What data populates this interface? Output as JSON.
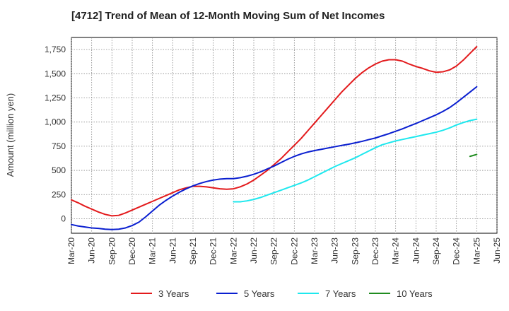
{
  "chart_data": {
    "type": "line",
    "title": "[4712]  Trend of Mean of 12-Month Moving Sum of Net Incomes",
    "xlabel": "",
    "ylabel": "Amount (million yen)",
    "ylim": [
      -150,
      1875
    ],
    "yticks": [
      0,
      250,
      500,
      750,
      1000,
      1250,
      1500,
      1750
    ],
    "ytick_labels": [
      "0",
      "250",
      "500",
      "750",
      "1,000",
      "1,250",
      "1,500",
      "1,750"
    ],
    "xticks": [
      "Mar-20",
      "Jun-20",
      "Sep-20",
      "Dec-20",
      "Mar-21",
      "Jun-21",
      "Sep-21",
      "Dec-21",
      "Mar-22",
      "Jun-22",
      "Sep-22",
      "Dec-22",
      "Mar-23",
      "Jun-23",
      "Sep-23",
      "Dec-23",
      "Mar-24",
      "Jun-24",
      "Sep-24",
      "Dec-24",
      "Mar-25",
      "Jun-25"
    ],
    "grid": true,
    "legend_position": "bottom",
    "series": [
      {
        "name": "3 Years",
        "color": "#e31a1c",
        "x": [
          "Mar-20",
          "Apr-20",
          "May-20",
          "Jun-20",
          "Jul-20",
          "Aug-20",
          "Sep-20",
          "Oct-20",
          "Nov-20",
          "Dec-20",
          "Jan-21",
          "Feb-21",
          "Mar-21",
          "Apr-21",
          "May-21",
          "Jun-21",
          "Jul-21",
          "Aug-21",
          "Sep-21",
          "Oct-21",
          "Nov-21",
          "Dec-21",
          "Jan-22",
          "Feb-22",
          "Mar-22",
          "Apr-22",
          "May-22",
          "Jun-22",
          "Jul-22",
          "Aug-22",
          "Sep-22",
          "Oct-22",
          "Nov-22",
          "Dec-22",
          "Jan-23",
          "Feb-23",
          "Mar-23",
          "Apr-23",
          "May-23",
          "Jun-23",
          "Jul-23",
          "Aug-23",
          "Sep-23",
          "Oct-23",
          "Nov-23",
          "Dec-23",
          "Jan-24",
          "Feb-24",
          "Mar-24",
          "Apr-24",
          "May-24",
          "Jun-24",
          "Jul-24",
          "Aug-24",
          "Sep-24",
          "Oct-24",
          "Nov-24",
          "Dec-24",
          "Jan-25",
          "Feb-25",
          "Mar-25"
        ],
        "values": [
          195,
          165,
          130,
          100,
          70,
          45,
          30,
          35,
          60,
          90,
          120,
          150,
          180,
          210,
          240,
          270,
          300,
          320,
          335,
          335,
          330,
          320,
          310,
          305,
          310,
          330,
          360,
          400,
          450,
          500,
          560,
          620,
          690,
          760,
          830,
          910,
          990,
          1070,
          1150,
          1230,
          1310,
          1380,
          1450,
          1510,
          1560,
          1600,
          1630,
          1645,
          1645,
          1630,
          1600,
          1575,
          1555,
          1530,
          1515,
          1520,
          1540,
          1580,
          1640,
          1710,
          1780
        ]
      },
      {
        "name": "5 Years",
        "color": "#0a1fd0",
        "x": [
          "Mar-20",
          "Apr-20",
          "May-20",
          "Jun-20",
          "Jul-20",
          "Aug-20",
          "Sep-20",
          "Oct-20",
          "Nov-20",
          "Dec-20",
          "Jan-21",
          "Feb-21",
          "Mar-21",
          "Apr-21",
          "May-21",
          "Jun-21",
          "Jul-21",
          "Aug-21",
          "Sep-21",
          "Oct-21",
          "Nov-21",
          "Dec-21",
          "Jan-22",
          "Feb-22",
          "Mar-22",
          "Apr-22",
          "May-22",
          "Jun-22",
          "Jul-22",
          "Aug-22",
          "Sep-22",
          "Oct-22",
          "Nov-22",
          "Dec-22",
          "Jan-23",
          "Feb-23",
          "Mar-23",
          "Apr-23",
          "May-23",
          "Jun-23",
          "Jul-23",
          "Aug-23",
          "Sep-23",
          "Oct-23",
          "Nov-23",
          "Dec-23",
          "Jan-24",
          "Feb-24",
          "Mar-24",
          "Apr-24",
          "May-24",
          "Jun-24",
          "Jul-24",
          "Aug-24",
          "Sep-24",
          "Oct-24",
          "Nov-24",
          "Dec-24",
          "Jan-25",
          "Feb-25",
          "Mar-25"
        ],
        "values": [
          -60,
          -75,
          -85,
          -95,
          -100,
          -108,
          -112,
          -108,
          -95,
          -70,
          -35,
          20,
          80,
          140,
          190,
          235,
          275,
          310,
          340,
          365,
          385,
          400,
          410,
          415,
          415,
          425,
          440,
          460,
          485,
          515,
          545,
          580,
          615,
          645,
          670,
          690,
          705,
          718,
          732,
          745,
          758,
          770,
          785,
          800,
          818,
          835,
          858,
          880,
          905,
          930,
          958,
          985,
          1015,
          1045,
          1075,
          1110,
          1150,
          1200,
          1255,
          1310,
          1365
        ]
      },
      {
        "name": "7 Years",
        "color": "#1ee8ee",
        "x": [
          "Mar-22",
          "Apr-22",
          "May-22",
          "Jun-22",
          "Jul-22",
          "Aug-22",
          "Sep-22",
          "Oct-22",
          "Nov-22",
          "Dec-22",
          "Jan-23",
          "Feb-23",
          "Mar-23",
          "Apr-23",
          "May-23",
          "Jun-23",
          "Jul-23",
          "Aug-23",
          "Sep-23",
          "Oct-23",
          "Nov-23",
          "Dec-23",
          "Jan-24",
          "Feb-24",
          "Mar-24",
          "Apr-24",
          "May-24",
          "Jun-24",
          "Jul-24",
          "Aug-24",
          "Sep-24",
          "Oct-24",
          "Nov-24",
          "Dec-24",
          "Jan-25",
          "Feb-25",
          "Mar-25"
        ],
        "values": [
          175,
          175,
          185,
          200,
          220,
          245,
          270,
          295,
          320,
          345,
          370,
          400,
          435,
          470,
          505,
          540,
          570,
          600,
          630,
          665,
          700,
          735,
          765,
          785,
          805,
          820,
          835,
          850,
          865,
          880,
          895,
          915,
          940,
          970,
          995,
          1015,
          1030
        ]
      },
      {
        "name": "10 Years",
        "color": "#208c20",
        "x": [
          "Feb-25",
          "Mar-25"
        ],
        "values": [
          645,
          665
        ]
      }
    ]
  }
}
